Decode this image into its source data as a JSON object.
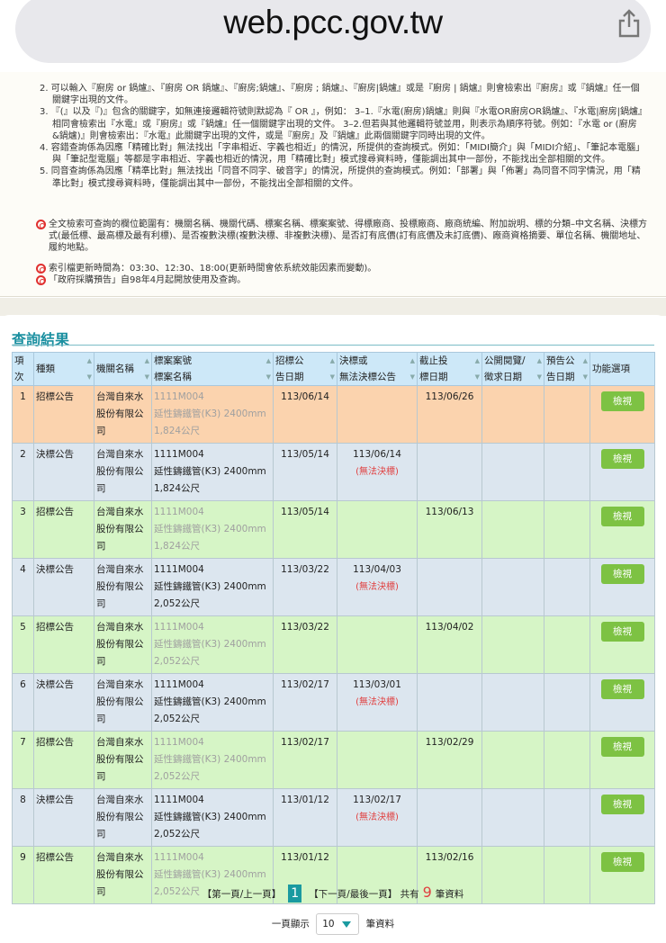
{
  "browser": {
    "url": "web.pcc.gov.tw"
  },
  "notes": {
    "items": [
      "2. 可以輸入『廚房 or 鍋爐』、『廚房 OR 鍋爐』、『廚房;鍋爐』、『廚房 ; 鍋爐』、『廚房|鍋爐』或是『廚房 | 鍋爐』則會檢索出『廚房』或『鍋爐』任一個關鍵字出現的文件。",
      "3. 『(』以及『)』包含的關鍵字，如無連接邏輯符號則默認為『 OR 』，例如： 3–1.『水電(廚房)鍋爐』則與『水電OR廚房OR鍋爐』、『水電|廚房|鍋爐』相同會檢索出『水電』或『廚房』或『鍋爐』任一個關鍵字出現的文件。 3–2.但若與其他邏輯符號並用，則表示為順序符號。例如：『水電 or (廚房&鍋爐)』則會檢索出：『水電』此關鍵字出現的文件，或是『廚房』及『鍋爐』此兩個關鍵字同時出現的文件。",
      "4. 容錯查詢係為因應「精確比對」無法找出「字串相近、字義也相近」的情況，所提供的查詢模式。例如：「MIDI簡介」與「MIDI介紹」、「筆記本電腦」與「筆記型電腦」等都是字串相近、字義也相近的情況，用「精確比對」模式搜尋資料時，僅能調出其中一部份，不能找出全部相關的文件。",
      "5. 同音查詢係為因應「精準比對」無法找出「同音不同字、破音字」的情況，所提供的查詢模式。例如：「部署」與「佈署」為同音不同字情況，用「精準比對」模式搜尋資料時，僅能調出其中一部份，不能找出全部相關的文件。"
    ],
    "bullets": [
      "全文檢索可查詢的欄位範圍有：機關名稱、機關代碼、標案名稱、標案案號、得標廠商、投標廠商、廠商統編、附加說明、標的分類–中文名稱、決標方式(最低標、最高標及最有利標)、是否複數決標(複數決標、非複數決標)、是否訂有底價(訂有底價及未訂底價)、廠商資格摘要、單位名稱、機關地址、履約地點。",
      "索引檔更新時間為：03:30、12:30、18:00(更新時間會依系統效能因素而變動)。",
      "「政府採購預告」自98年4月起開放使用及查詢。"
    ]
  },
  "results": {
    "title": "查詢結果",
    "headers": [
      [
        "項次",
        ""
      ],
      [
        "種類",
        ""
      ],
      [
        "機關名稱",
        ""
      ],
      [
        "標案案號",
        "標案名稱"
      ],
      [
        "招標公",
        "告日期"
      ],
      [
        "決標或",
        "無法決標公告"
      ],
      [
        "截止投",
        "標日期"
      ],
      [
        "公開閱覽/",
        "徵求日期"
      ],
      [
        "預告公",
        "告日期"
      ],
      [
        "功能選項",
        ""
      ]
    ],
    "colors": {
      "highlight": "#fbd3ae",
      "tender": "#d6f5c6",
      "award": "#dce6ef",
      "button": "#7dc243",
      "header": "#cde8f8"
    },
    "rows": [
      {
        "no": "1",
        "type": "招標公告",
        "agency": "台灣自來水股份有限公司",
        "case_no": "1111M004",
        "case_name": "延性鑄鐵管(K3) 2400mm",
        "length": "1,824公尺",
        "tender_date": "113/06/14",
        "award_date": "",
        "award_note": "",
        "deadline": "113/06/26",
        "review": "",
        "preview": "",
        "action": "檢視",
        "kind": "highlight"
      },
      {
        "no": "2",
        "type": "決標公告",
        "agency": "台灣自來水股份有限公司",
        "case_no": "1111M004",
        "case_name": "延性鑄鐵管(K3) 2400mm",
        "length": "1,824公尺",
        "tender_date": "113/05/14",
        "award_date": "113/06/14",
        "award_note": "(無法決標)",
        "deadline": "",
        "review": "",
        "preview": "",
        "action": "檢視",
        "kind": "award"
      },
      {
        "no": "3",
        "type": "招標公告",
        "agency": "台灣自來水股份有限公司",
        "case_no": "1111M004",
        "case_name": "延性鑄鐵管(K3) 2400mm",
        "length": "1,824公尺",
        "tender_date": "113/05/14",
        "award_date": "",
        "award_note": "",
        "deadline": "113/06/13",
        "review": "",
        "preview": "",
        "action": "檢視",
        "kind": "tender"
      },
      {
        "no": "4",
        "type": "決標公告",
        "agency": "台灣自來水股份有限公司",
        "case_no": "1111M004",
        "case_name": "延性鑄鐵管(K3) 2400mm",
        "length": "2,052公尺",
        "tender_date": "113/03/22",
        "award_date": "113/04/03",
        "award_note": "(無法決標)",
        "deadline": "",
        "review": "",
        "preview": "",
        "action": "檢視",
        "kind": "award"
      },
      {
        "no": "5",
        "type": "招標公告",
        "agency": "台灣自來水股份有限公司",
        "case_no": "1111M004",
        "case_name": "延性鑄鐵管(K3) 2400mm",
        "length": "2,052公尺",
        "tender_date": "113/03/22",
        "award_date": "",
        "award_note": "",
        "deadline": "113/04/02",
        "review": "",
        "preview": "",
        "action": "檢視",
        "kind": "tender"
      },
      {
        "no": "6",
        "type": "決標公告",
        "agency": "台灣自來水股份有限公司",
        "case_no": "1111M004",
        "case_name": "延性鑄鐵管(K3) 2400mm",
        "length": "2,052公尺",
        "tender_date": "113/02/17",
        "award_date": "113/03/01",
        "award_note": "(無法決標)",
        "deadline": "",
        "review": "",
        "preview": "",
        "action": "檢視",
        "kind": "award"
      },
      {
        "no": "7",
        "type": "招標公告",
        "agency": "台灣自來水股份有限公司",
        "case_no": "1111M004",
        "case_name": "延性鑄鐵管(K3) 2400mm",
        "length": "2,052公尺",
        "tender_date": "113/02/17",
        "award_date": "",
        "award_note": "",
        "deadline": "113/02/29",
        "review": "",
        "preview": "",
        "action": "檢視",
        "kind": "tender"
      },
      {
        "no": "8",
        "type": "決標公告",
        "agency": "台灣自來水股份有限公司",
        "case_no": "1111M004",
        "case_name": "延性鑄鐵管(K3) 2400mm",
        "length": "2,052公尺",
        "tender_date": "113/01/12",
        "award_date": "113/02/17",
        "award_note": "(無法決標)",
        "deadline": "",
        "review": "",
        "preview": "",
        "action": "檢視",
        "kind": "award"
      },
      {
        "no": "9",
        "type": "招標公告",
        "agency": "台灣自來水股份有限公司",
        "case_no": "1111M004",
        "case_name": "延性鑄鐵管(K3) 2400mm",
        "length": "2,052公尺",
        "tender_date": "113/01/12",
        "award_date": "",
        "award_note": "",
        "deadline": "113/02/16",
        "review": "",
        "preview": "",
        "action": "檢視",
        "kind": "tender"
      }
    ]
  },
  "pagination": {
    "prev": "【第一頁/上一頁】",
    "current": "1",
    "next": "【下一頁/最後一頁】",
    "total_prefix": "共有",
    "total": "9",
    "total_suffix": "筆資料",
    "per_page_label": "一頁顯示",
    "per_page": "10",
    "per_page_suffix": "筆資料"
  }
}
